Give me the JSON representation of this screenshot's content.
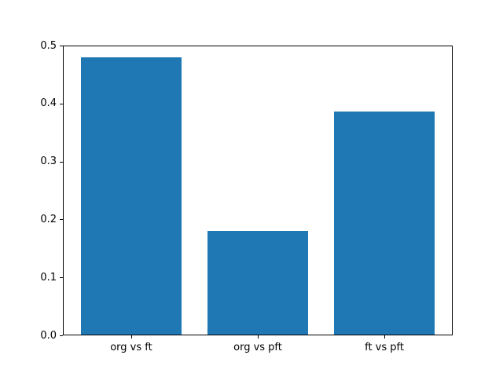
{
  "chart_data": {
    "type": "bar",
    "categories": [
      "org vs ft",
      "org vs pft",
      "ft vs pft"
    ],
    "values": [
      0.478,
      0.179,
      0.385
    ],
    "title": "",
    "xlabel": "",
    "ylabel": "",
    "ylim": [
      0,
      0.5
    ],
    "yticks": [
      0.0,
      0.1,
      0.2,
      0.3,
      0.4,
      0.5
    ],
    "ytick_labels": [
      "0.0",
      "0.1",
      "0.2",
      "0.3",
      "0.4",
      "0.5"
    ],
    "bar_color": "#1f77b4",
    "grid": false,
    "legend_position": "none",
    "bar_width_fraction": 0.8
  }
}
